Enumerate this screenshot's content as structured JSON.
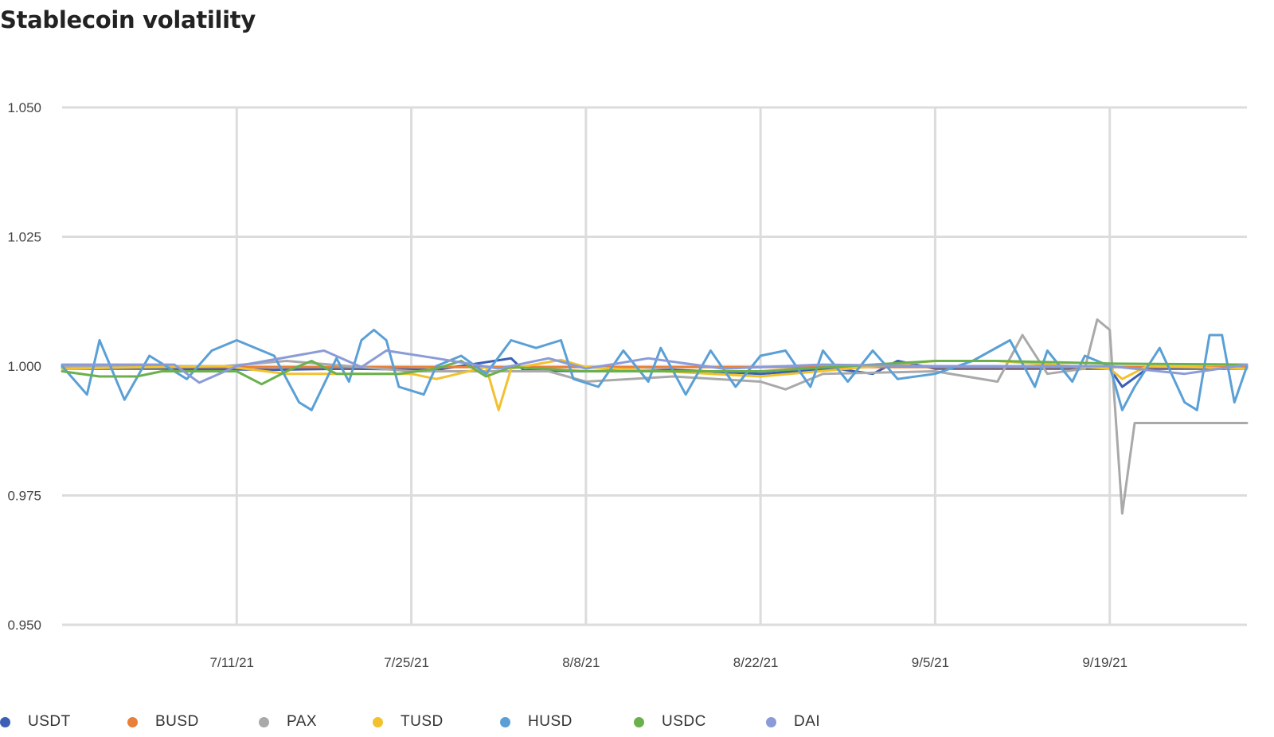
{
  "chart_data": {
    "type": "line",
    "title": "Stablecoin volatility",
    "xlabel": "",
    "ylabel": "",
    "ylim": [
      0.95,
      1.05
    ],
    "yticks": [
      "1.050",
      "1.025",
      "1.000",
      "0.975",
      "0.950"
    ],
    "ytick_values": [
      1.05,
      1.025,
      1.0,
      0.975,
      0.95
    ],
    "xlim": [
      "2021-06-27",
      "2021-09-30"
    ],
    "xticks": [
      "7/11/21",
      "7/25/21",
      "8/8/21",
      "8/22/21",
      "9/5/21",
      "9/19/21"
    ],
    "xtick_dates": [
      "2021-07-11",
      "2021-07-25",
      "2021-08-08",
      "2021-08-22",
      "2021-09-05",
      "2021-09-19"
    ],
    "grid": true,
    "legend_position": "bottom",
    "series": [
      {
        "name": "USDT",
        "color": "#3a5fb5",
        "values": [
          {
            "date": "2021-06-27",
            "y": 0.9995
          },
          {
            "date": "2021-07-05",
            "y": 0.9995
          },
          {
            "date": "2021-07-14",
            "y": 0.9993
          },
          {
            "date": "2021-07-20",
            "y": 0.9995
          },
          {
            "date": "2021-07-27",
            "y": 0.9993
          },
          {
            "date": "2021-08-02",
            "y": 1.0015
          },
          {
            "date": "2021-08-03",
            "y": 0.9992
          },
          {
            "date": "2021-08-08",
            "y": 0.999
          },
          {
            "date": "2021-08-15",
            "y": 0.9993
          },
          {
            "date": "2021-08-22",
            "y": 0.9985
          },
          {
            "date": "2021-08-28",
            "y": 0.9995
          },
          {
            "date": "2021-08-31",
            "y": 0.9985
          },
          {
            "date": "2021-09-02",
            "y": 1.001
          },
          {
            "date": "2021-09-05",
            "y": 0.9995
          },
          {
            "date": "2021-09-12",
            "y": 0.9995
          },
          {
            "date": "2021-09-19",
            "y": 0.9995
          },
          {
            "date": "2021-09-20",
            "y": 0.996
          },
          {
            "date": "2021-09-22",
            "y": 0.9995
          },
          {
            "date": "2021-09-30",
            "y": 0.9995
          }
        ]
      },
      {
        "name": "BUSD",
        "color": "#e8803a",
        "values": [
          {
            "date": "2021-06-27",
            "y": 0.9998
          },
          {
            "date": "2021-07-25",
            "y": 0.9998
          },
          {
            "date": "2021-08-22",
            "y": 0.9998
          },
          {
            "date": "2021-09-19",
            "y": 0.9998
          },
          {
            "date": "2021-09-30",
            "y": 0.9998
          }
        ]
      },
      {
        "name": "PAX",
        "color": "#a9a9a9",
        "values": [
          {
            "date": "2021-06-27",
            "y": 1.0
          },
          {
            "date": "2021-07-10",
            "y": 1.0
          },
          {
            "date": "2021-07-15",
            "y": 1.001
          },
          {
            "date": "2021-07-25",
            "y": 0.999
          },
          {
            "date": "2021-08-05",
            "y": 0.999
          },
          {
            "date": "2021-08-08",
            "y": 0.997
          },
          {
            "date": "2021-08-15",
            "y": 0.998
          },
          {
            "date": "2021-08-22",
            "y": 0.997
          },
          {
            "date": "2021-08-24",
            "y": 0.9955
          },
          {
            "date": "2021-08-27",
            "y": 0.9985
          },
          {
            "date": "2021-09-05",
            "y": 0.999
          },
          {
            "date": "2021-09-10",
            "y": 0.997
          },
          {
            "date": "2021-09-12",
            "y": 1.006
          },
          {
            "date": "2021-09-14",
            "y": 0.9985
          },
          {
            "date": "2021-09-17",
            "y": 0.9995
          },
          {
            "date": "2021-09-18",
            "y": 1.009
          },
          {
            "date": "2021-09-19",
            "y": 1.007
          },
          {
            "date": "2021-09-20",
            "y": 0.9715
          },
          {
            "date": "2021-09-21",
            "y": 0.989
          },
          {
            "date": "2021-09-30",
            "y": 0.989
          }
        ]
      },
      {
        "name": "TUSD",
        "color": "#f2c12e",
        "values": [
          {
            "date": "2021-06-27",
            "y": 0.9995
          },
          {
            "date": "2021-07-10",
            "y": 1.0
          },
          {
            "date": "2021-07-15",
            "y": 0.9985
          },
          {
            "date": "2021-07-25",
            "y": 0.9985
          },
          {
            "date": "2021-07-27",
            "y": 0.9975
          },
          {
            "date": "2021-07-31",
            "y": 0.9998
          },
          {
            "date": "2021-08-01",
            "y": 0.9915
          },
          {
            "date": "2021-08-02",
            "y": 0.9995
          },
          {
            "date": "2021-08-06",
            "y": 1.0012
          },
          {
            "date": "2021-08-08",
            "y": 0.9998
          },
          {
            "date": "2021-08-22",
            "y": 0.998
          },
          {
            "date": "2021-09-05",
            "y": 1.001
          },
          {
            "date": "2021-09-10",
            "y": 1.001
          },
          {
            "date": "2021-09-19",
            "y": 0.9995
          },
          {
            "date": "2021-09-20",
            "y": 0.9975
          },
          {
            "date": "2021-09-22",
            "y": 1.0
          },
          {
            "date": "2021-09-30",
            "y": 0.9995
          }
        ]
      },
      {
        "name": "HUSD",
        "color": "#5aa0d6",
        "values": [
          {
            "date": "2021-06-27",
            "y": 1.0
          },
          {
            "date": "2021-06-29",
            "y": 0.9945
          },
          {
            "date": "2021-06-30",
            "y": 1.005
          },
          {
            "date": "2021-07-02",
            "y": 0.9935
          },
          {
            "date": "2021-07-04",
            "y": 1.002
          },
          {
            "date": "2021-07-07",
            "y": 0.9975
          },
          {
            "date": "2021-07-09",
            "y": 1.003
          },
          {
            "date": "2021-07-11",
            "y": 1.005
          },
          {
            "date": "2021-07-14",
            "y": 1.002
          },
          {
            "date": "2021-07-16",
            "y": 0.993
          },
          {
            "date": "2021-07-17",
            "y": 0.9915
          },
          {
            "date": "2021-07-19",
            "y": 1.0015
          },
          {
            "date": "2021-07-20",
            "y": 0.997
          },
          {
            "date": "2021-07-21",
            "y": 1.005
          },
          {
            "date": "2021-07-22",
            "y": 1.007
          },
          {
            "date": "2021-07-23",
            "y": 1.005
          },
          {
            "date": "2021-07-24",
            "y": 0.996
          },
          {
            "date": "2021-07-26",
            "y": 0.9945
          },
          {
            "date": "2021-07-27",
            "y": 1.0
          },
          {
            "date": "2021-07-29",
            "y": 1.002
          },
          {
            "date": "2021-07-31",
            "y": 0.9985
          },
          {
            "date": "2021-08-02",
            "y": 1.005
          },
          {
            "date": "2021-08-04",
            "y": 1.0035
          },
          {
            "date": "2021-08-06",
            "y": 1.005
          },
          {
            "date": "2021-08-07",
            "y": 0.9975
          },
          {
            "date": "2021-08-09",
            "y": 0.996
          },
          {
            "date": "2021-08-11",
            "y": 1.003
          },
          {
            "date": "2021-08-13",
            "y": 0.997
          },
          {
            "date": "2021-08-14",
            "y": 1.0035
          },
          {
            "date": "2021-08-16",
            "y": 0.9945
          },
          {
            "date": "2021-08-18",
            "y": 1.003
          },
          {
            "date": "2021-08-20",
            "y": 0.996
          },
          {
            "date": "2021-08-22",
            "y": 1.002
          },
          {
            "date": "2021-08-24",
            "y": 1.003
          },
          {
            "date": "2021-08-26",
            "y": 0.996
          },
          {
            "date": "2021-08-27",
            "y": 1.003
          },
          {
            "date": "2021-08-29",
            "y": 0.997
          },
          {
            "date": "2021-08-31",
            "y": 1.003
          },
          {
            "date": "2021-09-02",
            "y": 0.9975
          },
          {
            "date": "2021-09-05",
            "y": 0.9985
          },
          {
            "date": "2021-09-08",
            "y": 1.001
          },
          {
            "date": "2021-09-11",
            "y": 1.005
          },
          {
            "date": "2021-09-13",
            "y": 0.996
          },
          {
            "date": "2021-09-14",
            "y": 1.003
          },
          {
            "date": "2021-09-16",
            "y": 0.997
          },
          {
            "date": "2021-09-17",
            "y": 1.002
          },
          {
            "date": "2021-09-19",
            "y": 1.0
          },
          {
            "date": "2021-09-20",
            "y": 0.9915
          },
          {
            "date": "2021-09-21",
            "y": 0.996
          },
          {
            "date": "2021-09-23",
            "y": 1.0035
          },
          {
            "date": "2021-09-25",
            "y": 0.993
          },
          {
            "date": "2021-09-26",
            "y": 0.9915
          },
          {
            "date": "2021-09-27",
            "y": 1.006
          },
          {
            "date": "2021-09-28",
            "y": 1.006
          },
          {
            "date": "2021-09-29",
            "y": 0.993
          },
          {
            "date": "2021-09-30",
            "y": 1.0
          }
        ]
      },
      {
        "name": "USDC",
        "color": "#6ab04c",
        "values": [
          {
            "date": "2021-06-27",
            "y": 0.999
          },
          {
            "date": "2021-06-30",
            "y": 0.998
          },
          {
            "date": "2021-07-03",
            "y": 0.998
          },
          {
            "date": "2021-07-05",
            "y": 0.999
          },
          {
            "date": "2021-07-11",
            "y": 0.999
          },
          {
            "date": "2021-07-13",
            "y": 0.9965
          },
          {
            "date": "2021-07-15",
            "y": 0.999
          },
          {
            "date": "2021-07-17",
            "y": 1.001
          },
          {
            "date": "2021-07-19",
            "y": 0.9985
          },
          {
            "date": "2021-07-24",
            "y": 0.9985
          },
          {
            "date": "2021-07-27",
            "y": 0.9995
          },
          {
            "date": "2021-07-29",
            "y": 1.001
          },
          {
            "date": "2021-07-31",
            "y": 0.998
          },
          {
            "date": "2021-08-02",
            "y": 0.9998
          },
          {
            "date": "2021-08-08",
            "y": 0.999
          },
          {
            "date": "2021-08-22",
            "y": 0.999
          },
          {
            "date": "2021-09-05",
            "y": 1.001
          },
          {
            "date": "2021-09-10",
            "y": 1.001
          },
          {
            "date": "2021-09-19",
            "y": 1.0005
          },
          {
            "date": "2021-09-30",
            "y": 1.0003
          }
        ]
      },
      {
        "name": "DAI",
        "color": "#8a9bd8",
        "values": [
          {
            "date": "2021-06-27",
            "y": 1.0003
          },
          {
            "date": "2021-07-06",
            "y": 1.0003
          },
          {
            "date": "2021-07-08",
            "y": 0.9968
          },
          {
            "date": "2021-07-11",
            "y": 1.0
          },
          {
            "date": "2021-07-18",
            "y": 1.003
          },
          {
            "date": "2021-07-21",
            "y": 0.9998
          },
          {
            "date": "2021-07-23",
            "y": 1.003
          },
          {
            "date": "2021-07-27",
            "y": 1.0015
          },
          {
            "date": "2021-08-01",
            "y": 0.9995
          },
          {
            "date": "2021-08-05",
            "y": 1.0015
          },
          {
            "date": "2021-08-08",
            "y": 0.9995
          },
          {
            "date": "2021-08-13",
            "y": 1.0015
          },
          {
            "date": "2021-08-19",
            "y": 0.9995
          },
          {
            "date": "2021-08-27",
            "y": 1.0003
          },
          {
            "date": "2021-09-05",
            "y": 1.0
          },
          {
            "date": "2021-09-19",
            "y": 1.0
          },
          {
            "date": "2021-09-25",
            "y": 0.9985
          },
          {
            "date": "2021-09-30",
            "y": 1.0003
          }
        ]
      }
    ]
  }
}
